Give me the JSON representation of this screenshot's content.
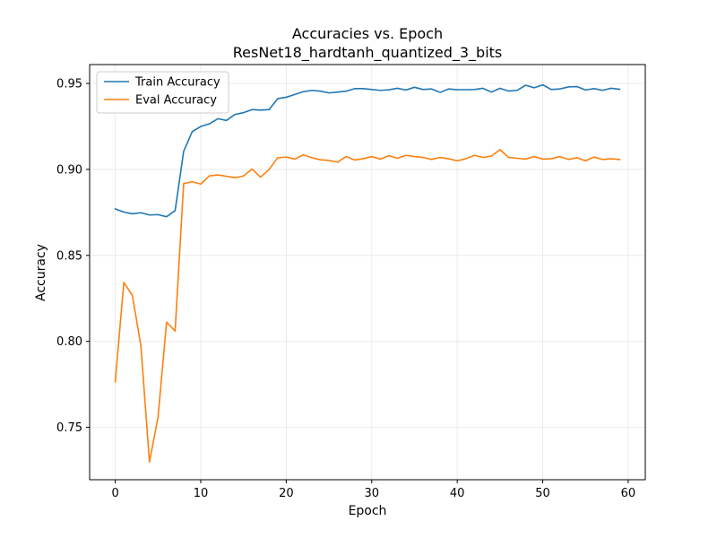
{
  "chart_data": {
    "type": "line",
    "title": "Accuracies vs. Epoch",
    "subtitle": "ResNet18_hardtanh_quantized_3_bits",
    "xlabel": "Epoch",
    "ylabel": "Accuracy",
    "xlim": [
      -3.0,
      62.0
    ],
    "ylim": [
      0.7195,
      0.961
    ],
    "x_ticks": [
      0,
      10,
      20,
      30,
      40,
      50,
      60
    ],
    "y_ticks": [
      0.75,
      0.8,
      0.85,
      0.9,
      0.95
    ],
    "y_tick_labels": [
      "0.75",
      "0.80",
      "0.85",
      "0.90",
      "0.95"
    ],
    "grid": true,
    "legend_position": "top-left",
    "x": [
      0,
      1,
      2,
      3,
      4,
      5,
      6,
      7,
      8,
      9,
      10,
      11,
      12,
      13,
      14,
      15,
      16,
      17,
      18,
      19,
      20,
      21,
      22,
      23,
      24,
      25,
      26,
      27,
      28,
      29,
      30,
      31,
      32,
      33,
      34,
      35,
      36,
      37,
      38,
      39,
      40,
      41,
      42,
      43,
      44,
      45,
      46,
      47,
      48,
      49,
      50,
      51,
      52,
      53,
      54,
      55,
      56,
      57,
      58,
      59
    ],
    "series": [
      {
        "name": "Train Accuracy",
        "color": "#1f77b4",
        "values": [
          0.877,
          0.8752,
          0.8742,
          0.8748,
          0.8735,
          0.8737,
          0.8725,
          0.876,
          0.9105,
          0.922,
          0.925,
          0.9265,
          0.9295,
          0.9285,
          0.932,
          0.933,
          0.9348,
          0.9345,
          0.9348,
          0.9412,
          0.942,
          0.9436,
          0.9452,
          0.946,
          0.9455,
          0.9445,
          0.945,
          0.9455,
          0.947,
          0.947,
          0.9465,
          0.946,
          0.9463,
          0.9472,
          0.9462,
          0.9478,
          0.9465,
          0.9468,
          0.9448,
          0.9468,
          0.9464,
          0.9464,
          0.9465,
          0.9472,
          0.945,
          0.9472,
          0.9456,
          0.946,
          0.949,
          0.9475,
          0.9492,
          0.9465,
          0.9468,
          0.948,
          0.9482,
          0.9462,
          0.947,
          0.946,
          0.9472,
          0.9466
        ]
      },
      {
        "name": "Eval Accuracy",
        "color": "#ff7f0e",
        "values": [
          0.7765,
          0.8342,
          0.8268,
          0.7972,
          0.7298,
          0.7558,
          0.8112,
          0.806,
          0.8918,
          0.8928,
          0.8915,
          0.8962,
          0.8968,
          0.896,
          0.8952,
          0.8962,
          0.9002,
          0.8955,
          0.9,
          0.9068,
          0.9072,
          0.906,
          0.9085,
          0.9068,
          0.9056,
          0.9052,
          0.9042,
          0.9075,
          0.9055,
          0.9062,
          0.9075,
          0.906,
          0.908,
          0.9065,
          0.9082,
          0.9075,
          0.907,
          0.9058,
          0.907,
          0.9062,
          0.905,
          0.9062,
          0.9082,
          0.907,
          0.9078,
          0.9115,
          0.907,
          0.9065,
          0.906,
          0.9075,
          0.906,
          0.9062,
          0.9075,
          0.9058,
          0.9068,
          0.905,
          0.9072,
          0.9058,
          0.9062,
          0.9058
        ]
      }
    ]
  }
}
